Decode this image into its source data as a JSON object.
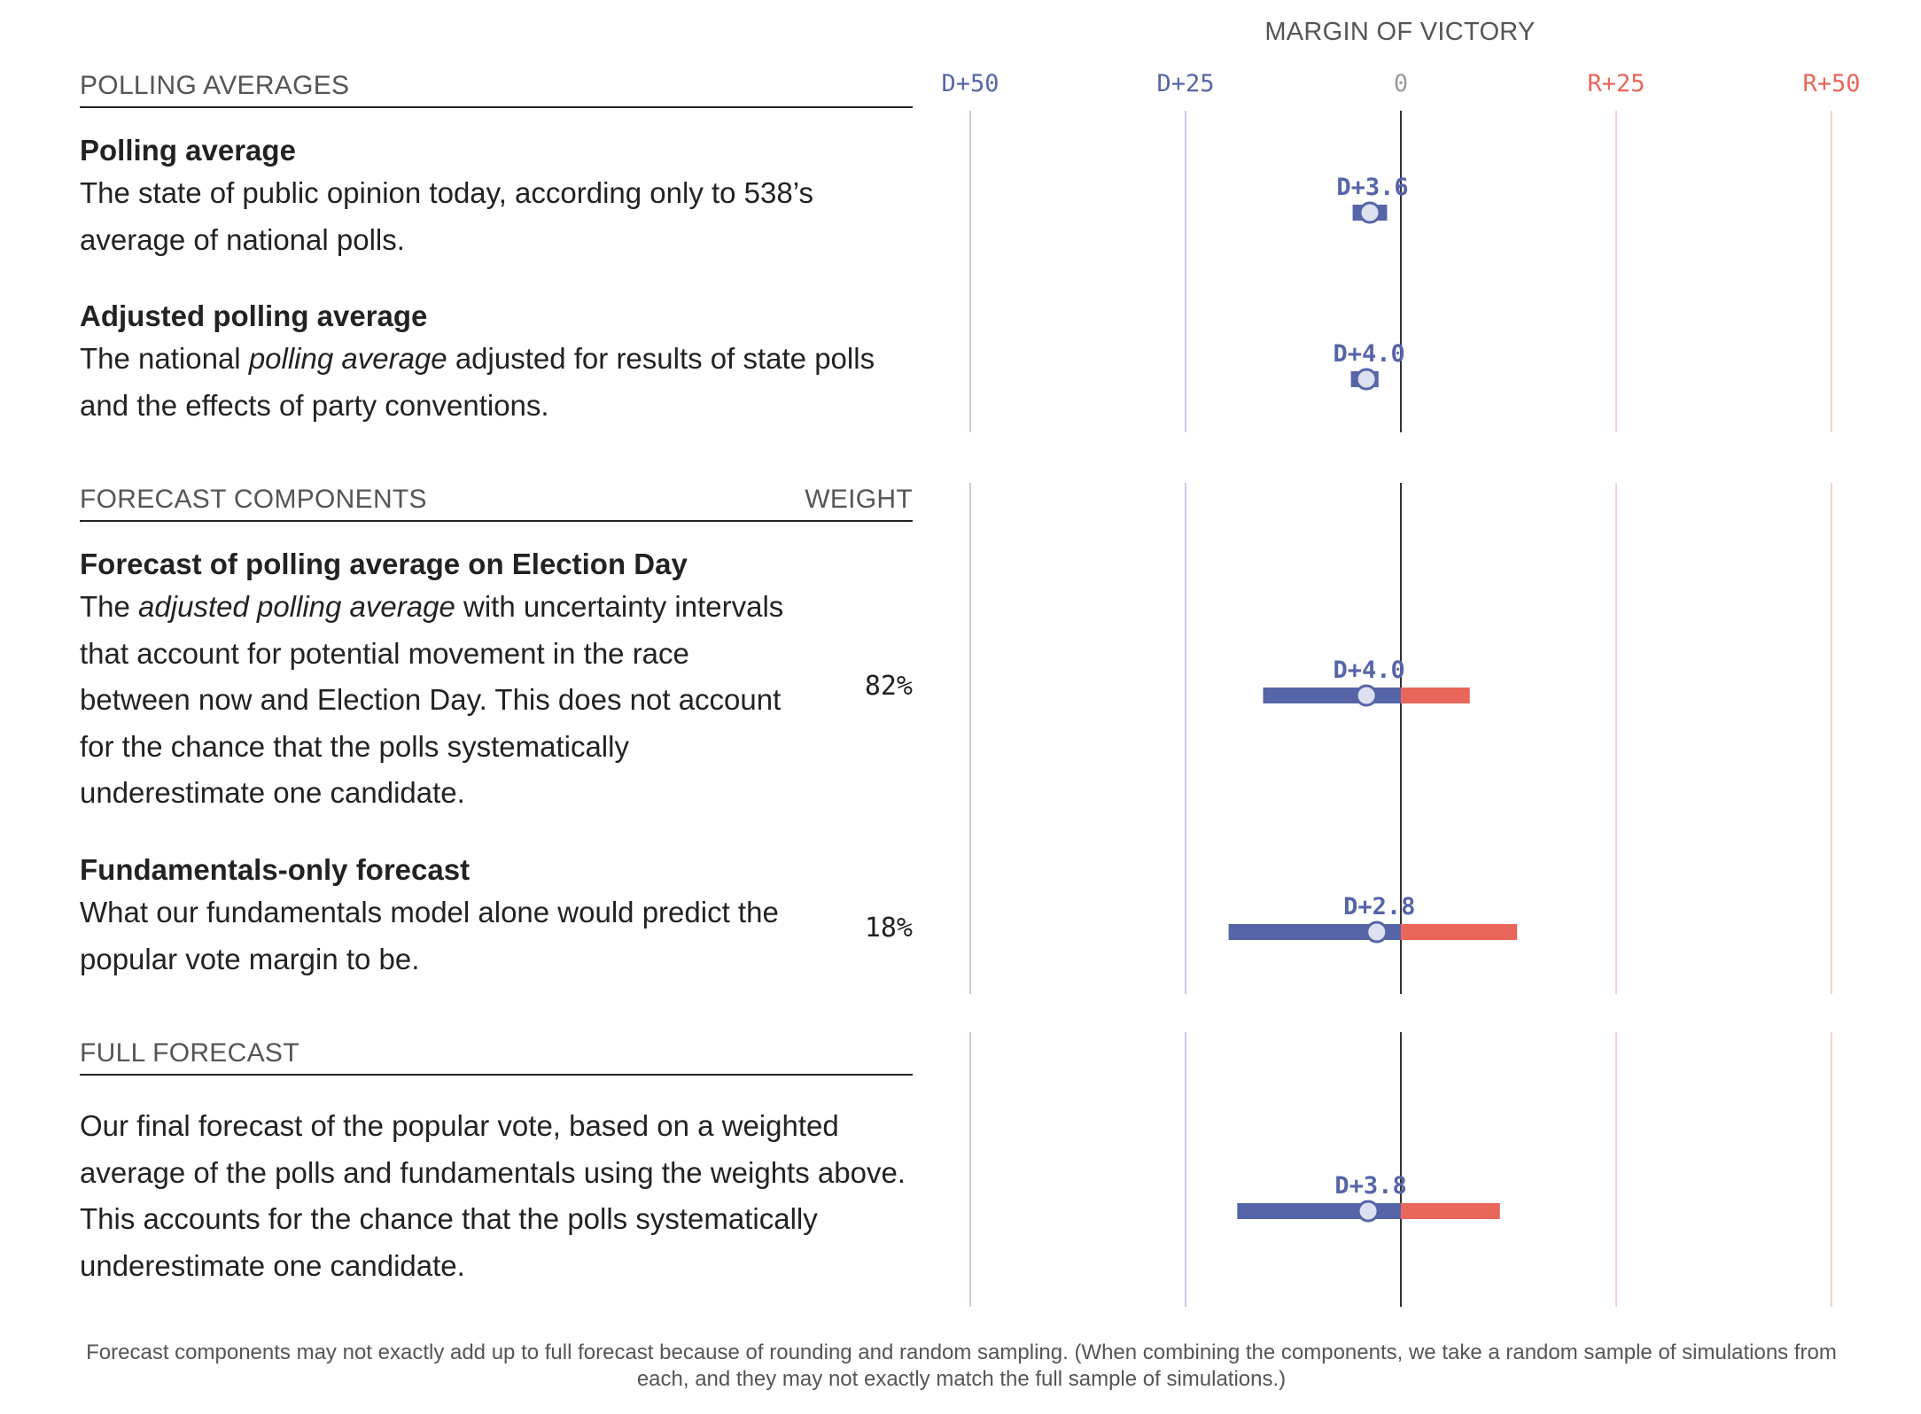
{
  "sections": {
    "polling": {
      "title": "POLLING AVERAGES"
    },
    "components": {
      "title": "FORECAST COMPONENTS",
      "weight_header": "WEIGHT"
    },
    "full": {
      "title": "FULL FORECAST"
    }
  },
  "items": {
    "polling_average": {
      "title": "Polling average",
      "desc": "The state of public opinion today, according only to 538’s average of national polls."
    },
    "adjusted": {
      "title": "Adjusted polling average",
      "desc_pre": "The national ",
      "desc_em": "polling average",
      "desc_post": " adjusted for results of state polls and the effects of party conventions."
    },
    "election_day": {
      "title": "Forecast of polling average on Election Day",
      "desc_pre": "The ",
      "desc_em": "adjusted polling average",
      "desc_post": " with uncertainty intervals that account for potential movement in the race between now and Election Day. This does not account for the chance that the polls systematically underestimate one candidate.",
      "weight": "82%"
    },
    "fundamentals": {
      "title": "Fundamentals-only forecast",
      "desc": "What our fundamentals model alone would predict the popular vote margin to be.",
      "weight": "18%"
    },
    "full_forecast": {
      "desc": "Our final forecast of the popular vote, based on a weighted average of the polls and fundamentals using the weights above. This accounts for the chance that the polls systematically underestimate one candidate."
    }
  },
  "footnote": "Forecast components may not exactly add up to full forecast because of rounding and random sampling. (When combining the components, we take a random sample of simulations from each, and they may not exactly match the full sample of simulations.)",
  "colors": {
    "dem": "#5665a8",
    "rep": "#e8665a",
    "dem_grid": "#c8cce3",
    "rep_grid": "#f3d2cd",
    "zero": "#333333"
  },
  "chart_data": {
    "type": "range",
    "title": "MARGIN OF VICTORY",
    "xlim": [
      -50,
      50
    ],
    "ticks": [
      {
        "value": -50,
        "label": "D+50"
      },
      {
        "value": -25,
        "label": "D+25"
      },
      {
        "value": 0,
        "label": "0"
      },
      {
        "value": 25,
        "label": "R+25"
      },
      {
        "value": 50,
        "label": "R+50"
      }
    ],
    "rows": [
      {
        "name": "Polling average",
        "value": -3.6,
        "label": "D+3.6",
        "low": -5.6,
        "high": -1.6
      },
      {
        "name": "Adjusted polling average",
        "value": -4.0,
        "label": "D+4.0",
        "low": -5.8,
        "high": -2.6
      },
      {
        "name": "Forecast of polling average on Election Day",
        "value": -4.0,
        "label": "D+4.0",
        "low": -16.0,
        "high": 8.0
      },
      {
        "name": "Fundamentals-only forecast",
        "value": -2.8,
        "label": "D+2.8",
        "low": -20.0,
        "high": 13.5
      },
      {
        "name": "Full forecast",
        "value": -3.8,
        "label": "D+3.8",
        "low": -19.0,
        "high": 11.5
      }
    ]
  }
}
